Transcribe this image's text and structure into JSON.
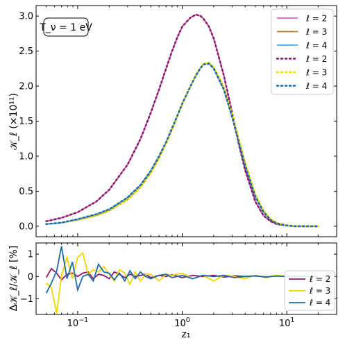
{
  "chart_data": [
    {
      "type": "line",
      "panel": "top",
      "xlabel": "",
      "ylabel": "𝒦_ℓ (×10¹¹)",
      "x_scale": "log",
      "xlim": [
        0.04,
        30
      ],
      "ylim": [
        -0.15,
        3.15
      ],
      "yticks": [
        "0.0",
        "0.5",
        "1.0",
        "1.5",
        "2.0",
        "2.5",
        "3.0"
      ],
      "annotation": "T_ν = 1 eV",
      "legend_position": "top-right",
      "legend": [
        {
          "label": "ℓ = 2",
          "color": "#d95fc4",
          "style": "solid"
        },
        {
          "label": "ℓ = 3",
          "color": "#b8772a",
          "style": "solid"
        },
        {
          "label": "ℓ = 4",
          "color": "#45a8e0",
          "style": "solid"
        },
        {
          "label": "ℓ = 2",
          "color": "#8b1a6b",
          "style": "dotted"
        },
        {
          "label": "ℓ = 3",
          "color": "#f2e400",
          "style": "dotted"
        },
        {
          "label": "ℓ = 4",
          "color": "#1f6aa8",
          "style": "dotted"
        }
      ],
      "x": [
        0.05,
        0.07,
        0.1,
        0.15,
        0.2,
        0.3,
        0.4,
        0.5,
        0.6,
        0.7,
        0.8,
        0.9,
        1.0,
        1.2,
        1.35,
        1.5,
        1.6,
        1.8,
        2.0,
        2.5,
        3.0,
        3.5,
        4.0,
        5.0,
        6.0,
        7.0,
        8.0,
        10.0,
        12.0,
        15.0,
        20.0
      ],
      "series": [
        {
          "name": "ℓ = 2",
          "color": "#d95fc4",
          "style": "solid",
          "values": [
            0.07,
            0.12,
            0.2,
            0.35,
            0.52,
            0.88,
            1.25,
            1.62,
            1.95,
            2.25,
            2.5,
            2.7,
            2.85,
            2.98,
            3.02,
            3.0,
            2.96,
            2.85,
            2.68,
            2.15,
            1.62,
            1.15,
            0.8,
            0.35,
            0.15,
            0.07,
            0.03,
            0.01,
            0.0,
            0.0,
            0.0
          ]
        },
        {
          "name": "ℓ = 3",
          "color": "#b8772a",
          "style": "solid",
          "values": [
            0.03,
            0.05,
            0.09,
            0.15,
            0.22,
            0.38,
            0.56,
            0.76,
            0.97,
            1.18,
            1.38,
            1.57,
            1.74,
            2.0,
            2.16,
            2.27,
            2.32,
            2.33,
            2.27,
            1.98,
            1.6,
            1.22,
            0.9,
            0.45,
            0.22,
            0.1,
            0.05,
            0.01,
            0.0,
            0.0,
            0.0
          ]
        },
        {
          "name": "ℓ = 4",
          "color": "#45a8e0",
          "style": "solid",
          "values": [
            0.03,
            0.05,
            0.1,
            0.17,
            0.24,
            0.41,
            0.59,
            0.79,
            1.0,
            1.2,
            1.4,
            1.58,
            1.75,
            2.0,
            2.15,
            2.26,
            2.31,
            2.32,
            2.25,
            1.95,
            1.56,
            1.18,
            0.86,
            0.42,
            0.2,
            0.09,
            0.04,
            0.01,
            0.0,
            0.0,
            0.0
          ]
        },
        {
          "name": "ℓ = 2",
          "color": "#8b1a6b",
          "style": "dotted",
          "values": [
            0.07,
            0.12,
            0.2,
            0.35,
            0.52,
            0.88,
            1.25,
            1.62,
            1.95,
            2.25,
            2.5,
            2.7,
            2.85,
            2.98,
            3.02,
            3.0,
            2.96,
            2.85,
            2.68,
            2.15,
            1.62,
            1.15,
            0.8,
            0.35,
            0.15,
            0.07,
            0.03,
            0.01,
            0.0,
            0.0,
            0.0
          ]
        },
        {
          "name": "ℓ = 3",
          "color": "#f2e400",
          "style": "dotted",
          "values": [
            0.03,
            0.05,
            0.09,
            0.15,
            0.22,
            0.38,
            0.56,
            0.76,
            0.97,
            1.18,
            1.38,
            1.57,
            1.74,
            2.0,
            2.16,
            2.27,
            2.32,
            2.33,
            2.27,
            1.98,
            1.6,
            1.22,
            0.9,
            0.45,
            0.22,
            0.1,
            0.05,
            0.01,
            0.0,
            0.0,
            0.0
          ]
        },
        {
          "name": "ℓ = 4",
          "color": "#1f6aa8",
          "style": "dotted",
          "values": [
            0.03,
            0.05,
            0.1,
            0.17,
            0.24,
            0.41,
            0.59,
            0.79,
            1.0,
            1.2,
            1.4,
            1.58,
            1.75,
            2.0,
            2.15,
            2.26,
            2.31,
            2.32,
            2.25,
            1.95,
            1.56,
            1.18,
            0.86,
            0.42,
            0.2,
            0.09,
            0.04,
            0.01,
            0.0,
            0.0,
            0.0
          ]
        }
      ]
    },
    {
      "type": "line",
      "panel": "bottom",
      "xlabel": "z₁",
      "ylabel": "Δ𝒦_ℓ/𝒦_ℓ [%]",
      "x_scale": "log",
      "xlim": [
        0.04,
        30
      ],
      "ylim": [
        -1.7,
        1.5
      ],
      "yticks": [
        "−1",
        "0",
        "1"
      ],
      "xticks": [
        {
          "value": 0.1,
          "base": "10",
          "exp": "−1"
        },
        {
          "value": 1,
          "base": "10",
          "exp": "0"
        },
        {
          "value": 10,
          "base": "10",
          "exp": "1"
        }
      ],
      "legend_position": "lower-right",
      "legend": [
        {
          "label": "ℓ = 2",
          "color": "#8b1a6b"
        },
        {
          "label": "ℓ = 3",
          "color": "#f2d400"
        },
        {
          "label": "ℓ = 4",
          "color": "#1f6aa8"
        }
      ],
      "x": [
        0.05,
        0.056,
        0.063,
        0.07,
        0.079,
        0.089,
        0.1,
        0.112,
        0.126,
        0.141,
        0.158,
        0.178,
        0.2,
        0.224,
        0.251,
        0.282,
        0.316,
        0.355,
        0.398,
        0.447,
        0.5,
        0.6,
        0.7,
        0.8,
        1.0,
        1.26,
        1.58,
        2.0,
        2.51,
        3.16,
        3.98,
        5.01,
        6.31,
        7.94,
        10.0,
        12.6,
        15.8,
        20.0
      ],
      "series": [
        {
          "name": "ℓ = 2",
          "color": "#8b1a6b",
          "values": [
            -0.05,
            0.35,
            0.15,
            -0.15,
            0.1,
            0.15,
            0.0,
            0.15,
            0.2,
            -0.1,
            0.1,
            0.05,
            -0.1,
            0.2,
            0.1,
            -0.05,
            0.1,
            0.0,
            0.05,
            0.1,
            -0.05,
            0.05,
            0.0,
            0.08,
            -0.05,
            0.05,
            0.0,
            0.05,
            -0.03,
            0.03,
            0.0,
            0.02,
            -0.02,
            0.02,
            0.0,
            0.01,
            0.0,
            0.0
          ]
        },
        {
          "name": "ℓ = 3",
          "color": "#f2d400",
          "values": [
            -0.3,
            -0.5,
            -1.65,
            0.05,
            0.85,
            -0.1,
            0.85,
            1.05,
            0.1,
            0.3,
            0.2,
            0.45,
            0.1,
            -0.2,
            0.3,
            0.15,
            -0.35,
            0.2,
            -0.2,
            0.1,
            0.1,
            -0.2,
            0.1,
            0.05,
            0.15,
            -0.1,
            0.05,
            -0.2,
            0.05,
            0.0,
            -0.1,
            0.05,
            -0.05,
            0.05,
            0.0,
            0.05,
            0.0,
            0.0
          ]
        },
        {
          "name": "ℓ = 4",
          "color": "#1f6aa8",
          "values": [
            -0.75,
            -0.3,
            0.25,
            1.35,
            -0.1,
            0.65,
            -0.6,
            0.0,
            0.1,
            -0.2,
            0.55,
            0.2,
            0.15,
            -0.15,
            0.15,
            -0.2,
            0.25,
            -0.1,
            0.2,
            0.0,
            -0.1,
            0.05,
            0.1,
            -0.05,
            0.05,
            -0.1,
            0.05,
            0.0,
            0.05,
            -0.05,
            0.0,
            0.03,
            -0.03,
            0.02,
            0.0,
            0.01,
            0.0,
            0.0
          ]
        }
      ]
    }
  ]
}
